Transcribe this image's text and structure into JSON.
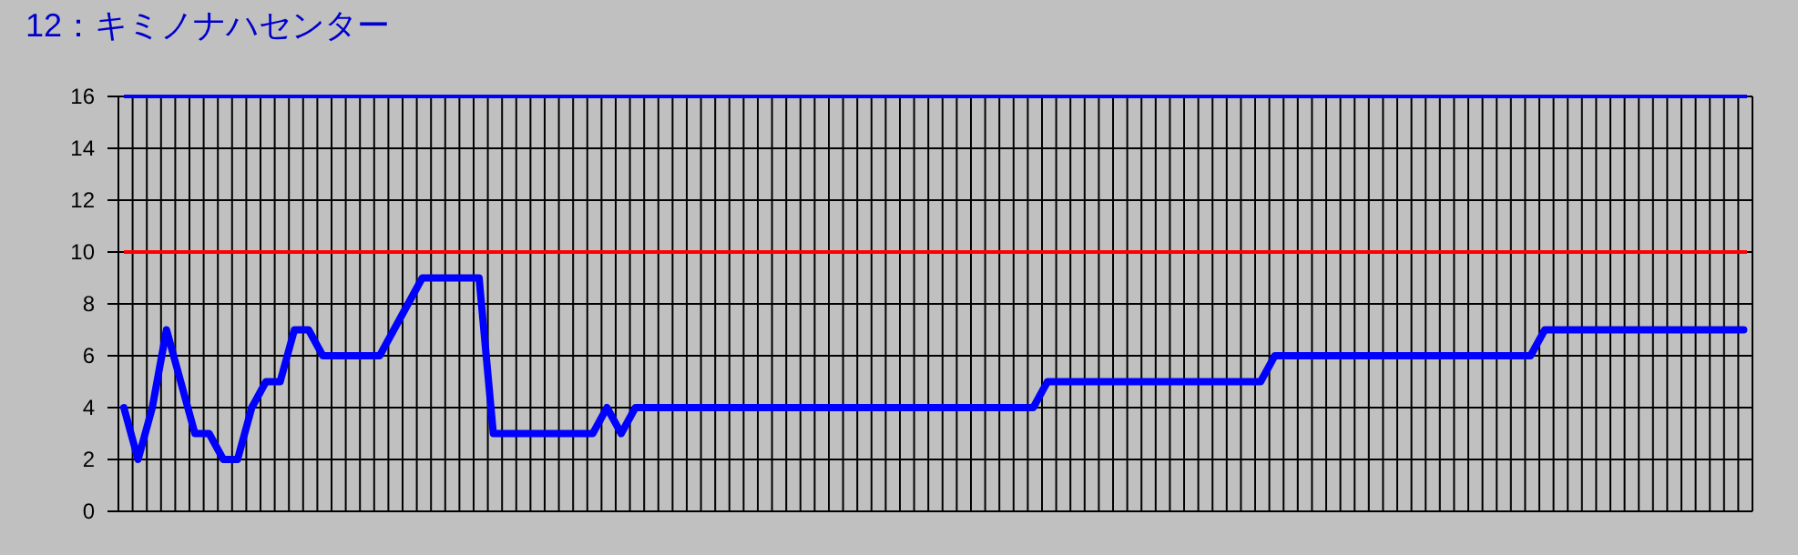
{
  "chart_data": {
    "type": "line",
    "title": "12：キミノナハセンター",
    "categories": [
      null,
      null,
      null,
      null,
      null,
      null,
      null,
      null,
      null,
      null,
      null,
      null,
      null,
      null,
      null,
      null,
      null,
      null,
      null,
      null,
      null,
      null,
      null,
      null,
      null,
      null,
      null,
      null,
      null,
      null,
      null,
      null,
      null,
      null,
      null,
      null,
      null,
      null,
      null,
      null,
      null,
      null,
      null,
      null,
      null,
      null,
      null,
      null,
      null,
      null,
      null,
      null,
      null,
      null,
      null,
      null,
      null,
      null,
      null,
      null,
      null,
      null,
      null,
      null,
      null,
      null,
      null,
      null,
      null,
      null,
      null,
      null,
      null,
      null,
      null,
      null,
      null,
      null,
      null,
      null,
      null,
      null,
      null,
      null,
      null,
      null,
      null,
      null,
      null,
      null,
      null,
      null,
      null,
      null,
      null,
      null,
      null,
      null,
      null,
      null,
      null,
      null,
      null,
      null,
      null,
      null,
      null,
      null,
      null,
      null,
      null,
      null,
      null,
      null,
      null
    ],
    "series": [
      {
        "color": "#0000ff",
        "values": [
          4,
          2,
          4,
          7,
          5,
          3,
          3,
          2,
          2,
          4,
          5,
          5,
          7,
          7,
          6,
          6,
          6,
          6,
          6,
          7,
          8,
          9,
          9,
          9,
          9,
          9,
          3,
          3,
          3,
          3,
          3,
          3,
          3,
          3,
          4,
          3,
          4,
          4,
          4,
          4,
          4,
          4,
          4,
          4,
          4,
          4,
          4,
          4,
          4,
          4,
          4,
          4,
          4,
          4,
          4,
          4,
          4,
          4,
          4,
          4,
          4,
          4,
          4,
          4,
          4,
          5,
          5,
          5,
          5,
          5,
          5,
          5,
          5,
          5,
          5,
          5,
          5,
          5,
          5,
          5,
          5,
          6,
          6,
          6,
          6,
          6,
          6,
          6,
          6,
          6,
          6,
          6,
          6,
          6,
          6,
          6,
          6,
          6,
          6,
          6,
          7,
          7,
          7,
          7,
          7,
          7,
          7,
          7,
          7,
          7,
          7,
          7,
          7,
          7,
          7
        ]
      }
    ],
    "ylim": [
      0,
      16
    ],
    "yticks": [
      0,
      2,
      4,
      6,
      8,
      10,
      12,
      14,
      16
    ],
    "grid": true,
    "marker": "none",
    "line_style": "solid",
    "ref_lines": [
      {
        "axis": "y",
        "value": 16,
        "color": "#0000ff"
      },
      {
        "axis": "y",
        "value": 10,
        "color": "#ff0000"
      }
    ]
  }
}
